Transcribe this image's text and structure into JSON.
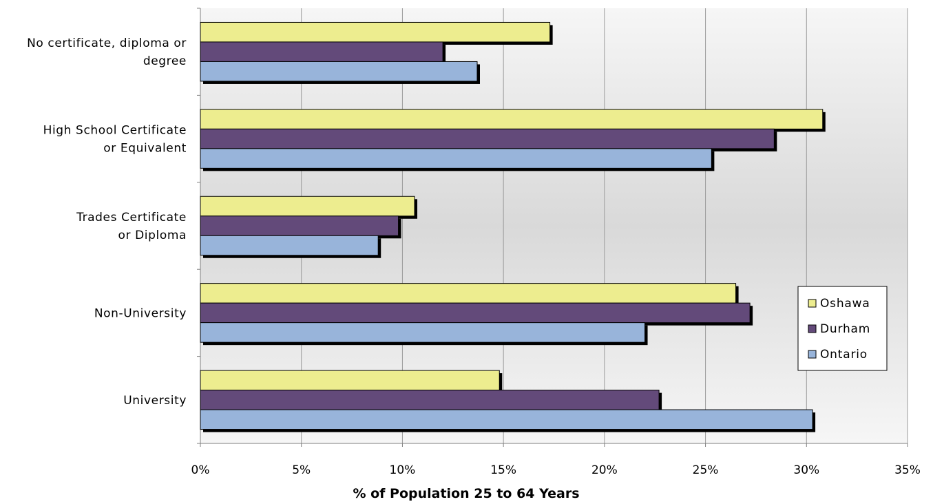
{
  "chart_data": {
    "type": "bar",
    "orientation": "horizontal",
    "categories": [
      [
        "No certificate, diploma or",
        "degree"
      ],
      [
        "High School Certificate",
        "or Equivalent"
      ],
      [
        "Trades Certificate",
        "or Diploma"
      ],
      [
        "Non-University"
      ],
      [
        "University"
      ]
    ],
    "series": [
      {
        "name": "Oshawa",
        "color": "#eded8f",
        "values": [
          17.3,
          30.8,
          10.6,
          26.5,
          14.8
        ]
      },
      {
        "name": "Durham",
        "color": "#634a7a",
        "values": [
          12.0,
          28.4,
          9.8,
          27.2,
          22.7
        ]
      },
      {
        "name": "Ontario",
        "color": "#98b4da",
        "values": [
          13.7,
          25.3,
          8.8,
          22.0,
          30.3
        ]
      }
    ],
    "xlim": [
      0,
      35
    ],
    "xticks": [
      "0%",
      "5%",
      "10%",
      "15%",
      "20%",
      "25%",
      "30%",
      "35%"
    ],
    "xlabel": "% of Population 25 to 64 Years",
    "ylabel": "",
    "title": "",
    "grid": "vertical",
    "legend_position": "right"
  }
}
